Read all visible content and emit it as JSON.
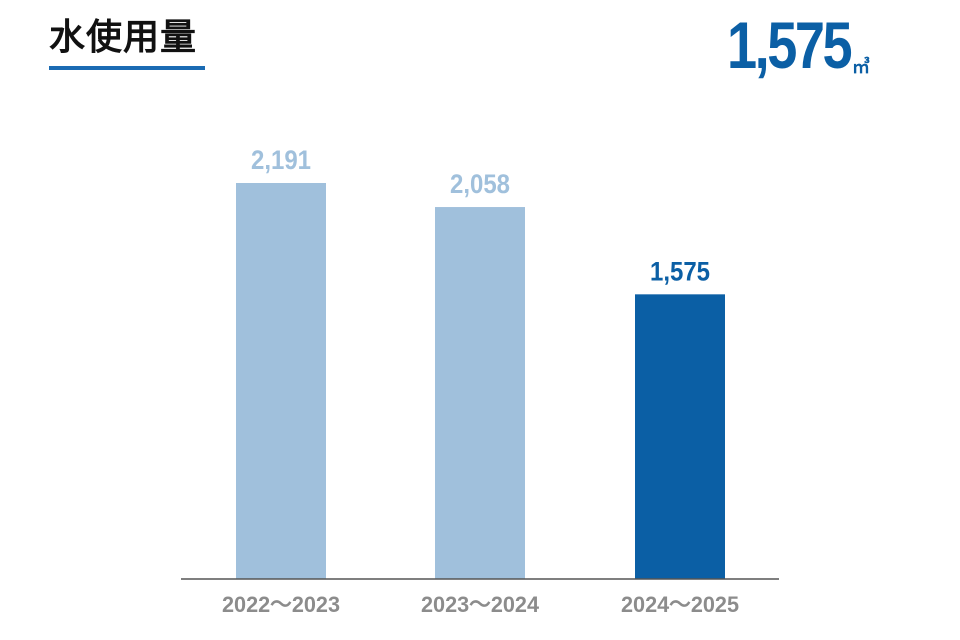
{
  "header": {
    "title": "水使用量",
    "total_value": "1,575",
    "total_unit": "㎥"
  },
  "colors": {
    "past_bar": "#a0c0dc",
    "current_bar": "#0b5fa5",
    "past_label": "#a0c0dc",
    "current_label": "#0b5fa5",
    "tick_label": "#8c8c8c",
    "axis": "#555555",
    "accent_underline": "#1a6bb3"
  },
  "chart_data": {
    "type": "bar",
    "title": "水使用量",
    "categories": [
      "2022～2023",
      "2023～2024",
      "2024～2025"
    ],
    "values": [
      2191,
      2058,
      1575
    ],
    "value_labels": [
      "2,191",
      "2,058",
      "1,575"
    ],
    "highlight_index": 2,
    "unit": "㎥",
    "xlabel": "",
    "ylabel": "",
    "ylim": [
      0,
      2191
    ],
    "grid": false,
    "legend": "none"
  }
}
